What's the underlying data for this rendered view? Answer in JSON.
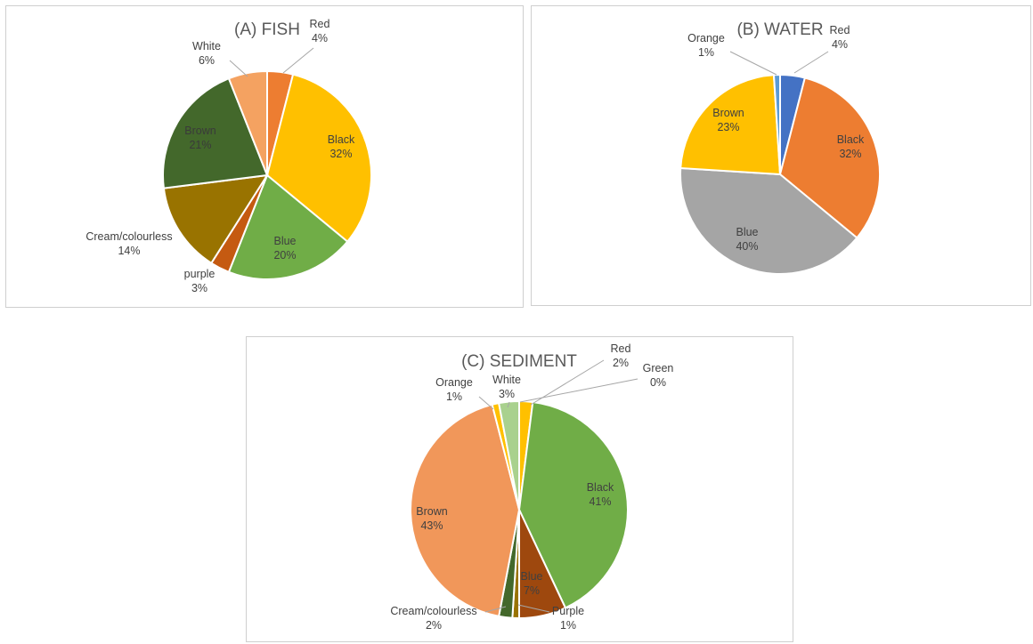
{
  "chart_data": [
    {
      "type": "pie",
      "title": "(A) FISH",
      "categories": [
        "Red",
        "Black",
        "Blue",
        "purple",
        "Cream/colourless",
        "Brown",
        "White"
      ],
      "values": [
        4,
        32,
        20,
        3,
        14,
        21,
        6
      ],
      "labels": [
        "4%",
        "32%",
        "20%",
        "3%",
        "14%",
        "21%",
        "6%"
      ],
      "colors": [
        "#ED7D31",
        "#FFC000",
        "#70AD47",
        "#C55A11",
        "#997300",
        "#43682B",
        "#F4A261"
      ],
      "legend": "none"
    },
    {
      "type": "pie",
      "title": "(B) WATER",
      "categories": [
        "Red",
        "Black",
        "Blue",
        "Brown",
        "Orange"
      ],
      "values": [
        4,
        32,
        40,
        23,
        1
      ],
      "labels": [
        "4%",
        "32%",
        "40%",
        "23%",
        "1%"
      ],
      "colors": [
        "#4472C4",
        "#ED7D31",
        "#A5A5A5",
        "#FFC000",
        "#5B9BD5"
      ],
      "legend": "none"
    },
    {
      "type": "pie",
      "title": "(C) SEDIMENT",
      "categories": [
        "Red",
        "Green",
        "Black",
        "Blue",
        "Purple",
        "Cream/colourless",
        "Brown",
        "Orange",
        "White"
      ],
      "values": [
        2,
        0,
        41,
        7,
        1,
        2,
        43,
        1,
        3
      ],
      "labels": [
        "2%",
        "0%",
        "41%",
        "7%",
        "1%",
        "2%",
        "43%",
        "1%",
        "3%"
      ],
      "colors": [
        "#FFC000",
        "#4472C4",
        "#70AD47",
        "#9E480E",
        "#997300",
        "#43682B",
        "#F1975A",
        "#FFC000",
        "#A9D18E"
      ],
      "legend": "none"
    }
  ]
}
